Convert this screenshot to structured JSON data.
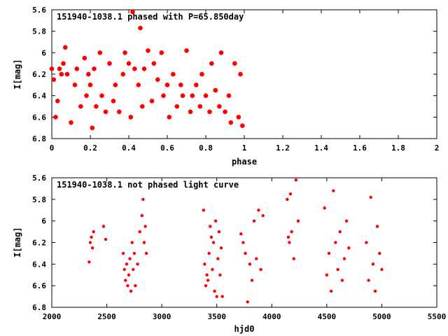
{
  "chart_data": [
    {
      "type": "scatter",
      "title": "151940-1038.1 phased with P=65.850day",
      "xlabel": "phase",
      "ylabel": "I[mag]",
      "xlim": [
        0,
        2
      ],
      "ylim": [
        6.8,
        5.6
      ],
      "y_axis_inverted": true,
      "xticks": [
        "0",
        "0.2",
        "0.4",
        "0.6",
        "0.8",
        "1",
        "1.2",
        "1.4",
        "1.6",
        "1.8",
        "2"
      ],
      "yticks": [
        "5.6",
        "5.8",
        "6",
        "6.2",
        "6.4",
        "6.6",
        "6.8"
      ],
      "grid": false,
      "marker_color": "#ff0000",
      "series": [
        {
          "x": [
            0.0,
            0.01,
            0.02,
            0.03,
            0.04,
            0.05,
            0.06,
            0.07,
            0.08,
            0.1,
            0.12,
            0.13,
            0.15,
            0.17,
            0.18,
            0.19,
            0.2,
            0.21,
            0.22,
            0.23,
            0.25,
            0.26,
            0.28,
            0.3,
            0.32,
            0.33,
            0.35,
            0.37,
            0.38,
            0.4,
            0.41,
            0.42,
            0.43,
            0.45,
            0.46,
            0.47,
            0.48,
            0.5,
            0.52,
            0.53,
            0.55,
            0.57,
            0.58,
            0.6,
            0.61,
            0.63,
            0.65,
            0.67,
            0.68,
            0.7,
            0.72,
            0.73,
            0.75,
            0.77,
            0.78,
            0.8,
            0.82,
            0.83,
            0.85,
            0.87,
            0.88,
            0.9,
            0.92,
            0.93,
            0.95,
            0.97,
            0.98,
            0.99
          ],
          "y": [
            6.15,
            6.25,
            6.6,
            6.45,
            6.15,
            6.2,
            6.1,
            5.95,
            6.2,
            6.65,
            6.3,
            6.15,
            6.5,
            6.05,
            6.4,
            6.2,
            6.3,
            6.7,
            6.15,
            6.5,
            6.0,
            6.4,
            6.55,
            6.1,
            6.45,
            6.3,
            6.55,
            6.2,
            6.0,
            6.1,
            6.6,
            5.62,
            6.15,
            6.3,
            5.77,
            6.5,
            6.15,
            5.98,
            6.45,
            6.1,
            6.25,
            6.0,
            6.4,
            6.3,
            6.6,
            6.2,
            6.5,
            6.3,
            6.4,
            5.98,
            6.55,
            6.4,
            6.3,
            6.5,
            6.2,
            6.4,
            6.55,
            6.1,
            6.35,
            6.5,
            6.0,
            6.55,
            6.4,
            6.65,
            6.1,
            6.6,
            6.2,
            6.68
          ]
        }
      ]
    },
    {
      "type": "scatter",
      "title": "151940-1038.1 not phased light curve",
      "xlabel": "hjd0",
      "ylabel": "I[mag]",
      "xlim": [
        2000,
        5500
      ],
      "ylim": [
        6.8,
        5.6
      ],
      "y_axis_inverted": true,
      "xticks": [
        "2000",
        "2500",
        "3000",
        "3500",
        "4000",
        "4500",
        "5000",
        "5500"
      ],
      "yticks": [
        "5.6",
        "5.8",
        "6",
        "6.2",
        "6.4",
        "6.6",
        "6.8"
      ],
      "grid": false,
      "marker_color": "#ff0000",
      "series": [
        {
          "x": [
            2340,
            2350,
            2360,
            2370,
            2380,
            2470,
            2490,
            2650,
            2660,
            2670,
            2680,
            2690,
            2700,
            2710,
            2720,
            2730,
            2740,
            2750,
            2760,
            2780,
            2800,
            2820,
            2830,
            2840,
            2850,
            2860,
            3380,
            3390,
            3400,
            3410,
            3420,
            3430,
            3440,
            3450,
            3460,
            3470,
            3480,
            3490,
            3500,
            3510,
            3520,
            3530,
            3540,
            3550,
            3720,
            3740,
            3760,
            3780,
            3800,
            3820,
            3840,
            3860,
            3880,
            3900,
            3920,
            4140,
            4150,
            4160,
            4170,
            4180,
            4200,
            4220,
            4240,
            4480,
            4500,
            4520,
            4540,
            4560,
            4580,
            4600,
            4620,
            4640,
            4660,
            4680,
            4700,
            4860,
            4880,
            4900,
            4920,
            4940,
            4960,
            4980,
            5000
          ],
          "y": [
            6.38,
            6.2,
            6.15,
            6.25,
            6.1,
            6.05,
            6.17,
            6.3,
            6.45,
            6.55,
            6.4,
            6.6,
            6.5,
            6.35,
            6.65,
            6.2,
            6.45,
            6.3,
            6.6,
            6.4,
            6.1,
            5.95,
            5.8,
            6.2,
            6.05,
            6.3,
            5.9,
            6.4,
            6.6,
            6.5,
            6.55,
            6.3,
            6.05,
            6.15,
            6.45,
            6.2,
            6.65,
            6.0,
            6.7,
            6.35,
            6.1,
            6.5,
            6.25,
            6.7,
            6.12,
            6.2,
            6.3,
            6.75,
            6.4,
            6.55,
            6.0,
            6.35,
            5.9,
            6.45,
            5.95,
            5.8,
            6.15,
            6.2,
            5.75,
            6.1,
            6.35,
            5.62,
            6.0,
            5.88,
            6.5,
            6.3,
            6.65,
            5.72,
            6.2,
            6.45,
            6.1,
            6.55,
            6.35,
            6.0,
            6.25,
            6.2,
            6.55,
            5.78,
            6.4,
            6.65,
            6.05,
            6.3,
            6.45
          ]
        }
      ]
    }
  ]
}
